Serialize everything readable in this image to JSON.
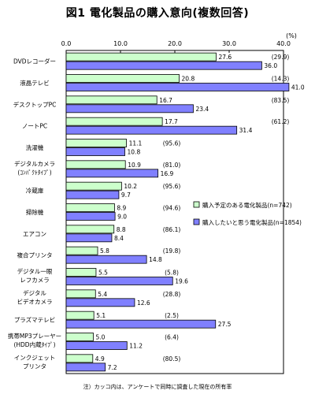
{
  "chart_data": {
    "type": "bar",
    "title": "図1  電化製品の購入意向(複数回答)",
    "unit_label": "(%)",
    "xlim": [
      0,
      40
    ],
    "xticks": [
      "0.0",
      "10.0",
      "20.0",
      "30.0",
      "40.0"
    ],
    "footnote": "注）カッコ内は、アンケートで同時に調査した現在の所有率",
    "categories": [
      [
        "DVDレコーダー"
      ],
      [
        "液晶テレビ"
      ],
      [
        "デスクトップPC"
      ],
      [
        "ノートPC"
      ],
      [
        "洗濯機"
      ],
      [
        "デジタルカメラ",
        "(ｺﾝﾊﾟｸﾄﾀｲﾌﾟ)"
      ],
      [
        "冷蔵庫"
      ],
      [
        "掃除機"
      ],
      [
        "エアコン"
      ],
      [
        "複合プリンタ"
      ],
      [
        "デジタル一眼",
        "レフカメラ"
      ],
      [
        "デジタル",
        "ビデオカメラ"
      ],
      [
        "プラズマテレビ"
      ],
      [
        "携帯MP3プレーヤー",
        "(HDD内蔵ﾀｲﾌﾟ)"
      ],
      [
        "インクジェット",
        "プリンタ"
      ]
    ],
    "series": [
      {
        "name": "購入予定のある電化製品(n=742)",
        "color": "#ccffcc",
        "values": [
          27.6,
          20.8,
          16.7,
          17.7,
          11.1,
          10.9,
          10.2,
          8.9,
          8.8,
          5.8,
          5.5,
          5.4,
          5.1,
          5.0,
          4.9
        ]
      },
      {
        "name": "購入したいと思う電化製品(n=1854)",
        "color": "#8080ff",
        "values": [
          36.0,
          41.0,
          23.4,
          31.4,
          10.8,
          16.9,
          9.7,
          9.0,
          8.4,
          14.8,
          19.6,
          12.6,
          27.5,
          11.2,
          7.2
        ]
      }
    ],
    "ownership_rate": [
      "(29.9)",
      "(14.3)",
      "(83.5)",
      "(61.2)",
      "(95.6)",
      "(81.0)",
      "(95.6)",
      "(94.6)",
      "(86.1)",
      "(19.8)",
      "(5.8)",
      "(28.8)",
      "(2.5)",
      "(6.4)",
      "(80.5)"
    ]
  }
}
